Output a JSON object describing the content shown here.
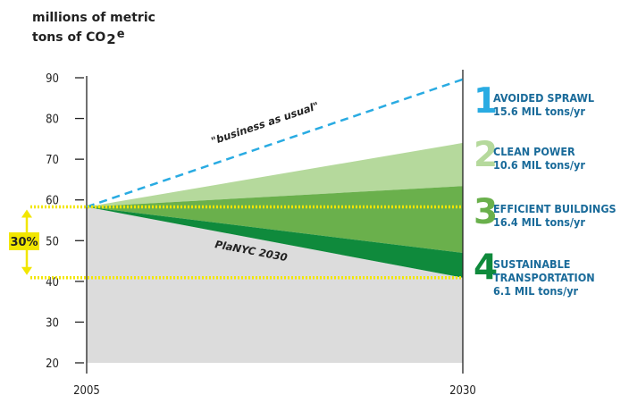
{
  "unit_label": {
    "line1": "millions of metric",
    "line2": "tons of CO",
    "sub": "2",
    "sup": "e"
  },
  "colors": {
    "bau": "#29abe2",
    "sprawl": "#ffffff",
    "clean_power": "#b5d99c",
    "efficient_buildings": "#6ab04c",
    "transportation": "#0f8a3c",
    "plan_area": "#dcdcdc",
    "highlight": "#f2e600",
    "axis": "#222222",
    "legend_text": "#1a6b9a"
  },
  "chart_data": {
    "type": "area",
    "x": [
      "2005",
      "2030"
    ],
    "ylim": [
      20,
      90
    ],
    "yticks": [
      20,
      30,
      40,
      50,
      60,
      70,
      80,
      90
    ],
    "series": [
      {
        "name": "business as usual",
        "values": [
          58.3,
          89.6
        ]
      },
      {
        "name": "after avoided sprawl",
        "values": [
          58.3,
          74.0
        ]
      },
      {
        "name": "after clean power",
        "values": [
          58.3,
          63.4
        ]
      },
      {
        "name": "after efficient buildings",
        "values": [
          58.3,
          47.0
        ]
      },
      {
        "name": "PlaNYC 2030",
        "values": [
          58.3,
          40.9
        ]
      }
    ],
    "reference_lines": [
      58.3,
      40.9
    ],
    "reduction_label": "30%",
    "annotations": [
      {
        "text": "\"business as usual\"",
        "target": "bau"
      },
      {
        "text": "PlaNYC 2030",
        "target": "plan"
      }
    ]
  },
  "legend": [
    {
      "num": "1",
      "lines": [
        "AVOIDED SPRAWL",
        "15.6 MIL tons/yr"
      ],
      "color": "#29abe2"
    },
    {
      "num": "2",
      "lines": [
        "CLEAN POWER",
        "10.6 MIL tons/yr"
      ],
      "color": "#b5d99c"
    },
    {
      "num": "3",
      "lines": [
        "EFFICIENT BUILDINGS",
        "16.4 MIL tons/yr"
      ],
      "color": "#6ab04c"
    },
    {
      "num": "4",
      "lines": [
        "SUSTAINABLE",
        "TRANSPORTATION",
        "6.1 MIL tons/yr"
      ],
      "color": "#0f8a3c"
    }
  ]
}
